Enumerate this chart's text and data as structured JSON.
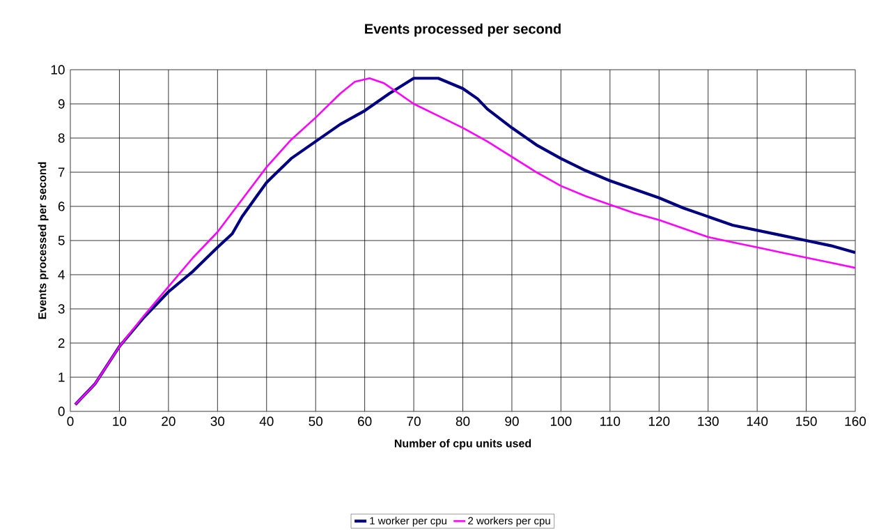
{
  "chart_data": {
    "type": "line",
    "title": "Events processed per second",
    "xlabel": "Number of cpu units used",
    "ylabel": "Events processed per second",
    "xlim": [
      0,
      160
    ],
    "ylim": [
      0,
      10
    ],
    "xticks": [
      0,
      10,
      20,
      30,
      40,
      50,
      60,
      70,
      80,
      90,
      100,
      110,
      120,
      130,
      140,
      150,
      160
    ],
    "yticks": [
      0,
      1,
      2,
      3,
      4,
      5,
      6,
      7,
      8,
      9,
      10
    ],
    "grid": true,
    "legend": "bottom",
    "series": [
      {
        "name": "1 worker per cpu",
        "color": "#000080",
        "x": [
          1,
          5,
          10,
          15,
          20,
          25,
          30,
          33,
          35,
          38,
          40,
          45,
          50,
          55,
          60,
          65,
          70,
          75,
          80,
          83,
          85,
          90,
          95,
          100,
          105,
          110,
          115,
          120,
          125,
          130,
          135,
          140,
          145,
          150,
          155,
          160
        ],
        "values": [
          0.2,
          0.8,
          1.9,
          2.75,
          3.5,
          4.1,
          4.8,
          5.2,
          5.7,
          6.3,
          6.7,
          7.4,
          7.9,
          8.4,
          8.8,
          9.3,
          9.75,
          9.75,
          9.45,
          9.15,
          8.85,
          8.3,
          7.8,
          7.4,
          7.05,
          6.75,
          6.5,
          6.25,
          5.95,
          5.7,
          5.45,
          5.3,
          5.15,
          5.0,
          4.85,
          4.65
        ]
      },
      {
        "name": "2 workers per cpu",
        "color": "#ff00ff",
        "x": [
          1,
          5,
          10,
          15,
          20,
          25,
          30,
          35,
          40,
          45,
          50,
          55,
          58,
          61,
          64,
          70,
          75,
          80,
          85,
          90,
          95,
          100,
          105,
          110,
          115,
          120,
          125,
          130,
          135,
          140,
          145,
          150,
          155,
          160
        ],
        "values": [
          0.2,
          0.8,
          1.9,
          2.8,
          3.65,
          4.5,
          5.25,
          6.2,
          7.15,
          7.95,
          8.6,
          9.3,
          9.65,
          9.75,
          9.6,
          9.0,
          8.65,
          8.3,
          7.9,
          7.45,
          7.0,
          6.6,
          6.3,
          6.05,
          5.8,
          5.6,
          5.35,
          5.1,
          4.95,
          4.8,
          4.65,
          4.5,
          4.35,
          4.2
        ]
      }
    ]
  }
}
